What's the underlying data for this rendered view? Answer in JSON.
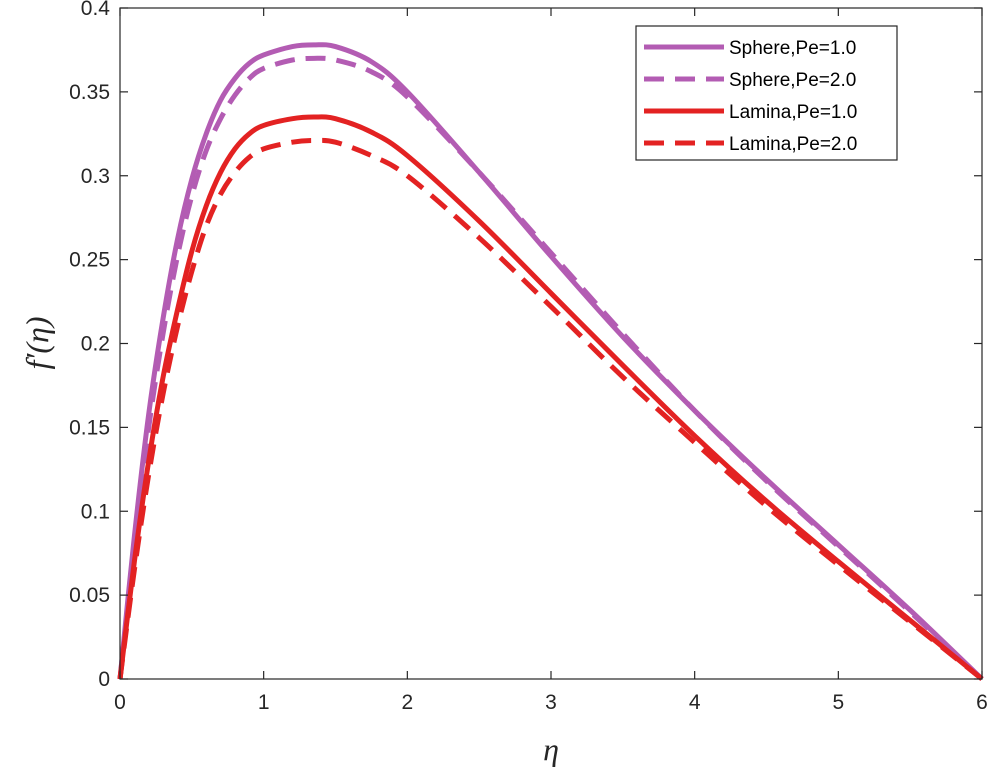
{
  "chart_data": {
    "type": "line",
    "title": "",
    "xlabel": "η",
    "ylabel": "f′(η)",
    "xlim": [
      0,
      6
    ],
    "ylim": [
      0,
      0.4
    ],
    "xticks": [
      0,
      1,
      2,
      3,
      4,
      5,
      6
    ],
    "yticks": [
      0,
      0.05,
      0.1,
      0.15,
      0.2,
      0.25,
      0.3,
      0.35,
      0.4
    ],
    "xtick_labels": [
      "0",
      "1",
      "2",
      "3",
      "4",
      "5",
      "6"
    ],
    "ytick_labels": [
      "0",
      "0.05",
      "0.1",
      "0.15",
      "0.2",
      "0.25",
      "0.3",
      "0.35",
      "0.4"
    ],
    "grid": false,
    "legend_position": "top-right",
    "x": [
      0,
      0.1,
      0.2,
      0.3,
      0.4,
      0.5,
      0.6,
      0.7,
      0.8,
      0.9,
      1.0,
      1.2,
      1.35,
      1.5,
      1.75,
      2.0,
      2.5,
      3.0,
      3.5,
      4.0,
      4.5,
      5.0,
      5.5,
      6.0
    ],
    "series": [
      {
        "name": "Sphere,Pe=1.0",
        "color": "#b35cb3",
        "dash": "solid",
        "values": [
          0,
          0.085,
          0.158,
          0.215,
          0.262,
          0.298,
          0.325,
          0.345,
          0.358,
          0.367,
          0.372,
          0.377,
          0.378,
          0.377,
          0.368,
          0.35,
          0.302,
          0.252,
          0.204,
          0.16,
          0.119,
          0.08,
          0.041,
          0
        ]
      },
      {
        "name": "Sphere,Pe=2.0",
        "color": "#b35cb3",
        "dash": "dashed",
        "values": [
          0,
          0.08,
          0.15,
          0.206,
          0.252,
          0.288,
          0.315,
          0.334,
          0.348,
          0.358,
          0.364,
          0.369,
          0.37,
          0.369,
          0.362,
          0.347,
          0.302,
          0.254,
          0.206,
          0.16,
          0.118,
          0.079,
          0.04,
          0
        ]
      },
      {
        "name": "Lamina,Pe=1.0",
        "color": "#e32222",
        "dash": "solid",
        "values": [
          0,
          0.07,
          0.13,
          0.18,
          0.22,
          0.255,
          0.282,
          0.302,
          0.316,
          0.325,
          0.33,
          0.334,
          0.335,
          0.334,
          0.326,
          0.312,
          0.273,
          0.23,
          0.187,
          0.145,
          0.106,
          0.07,
          0.035,
          0
        ]
      },
      {
        "name": "Lamina,Pe=2.0",
        "color": "#e32222",
        "dash": "dashed",
        "values": [
          0,
          0.065,
          0.122,
          0.17,
          0.21,
          0.243,
          0.27,
          0.289,
          0.302,
          0.311,
          0.316,
          0.32,
          0.321,
          0.32,
          0.312,
          0.3,
          0.263,
          0.222,
          0.18,
          0.141,
          0.103,
          0.068,
          0.034,
          0
        ]
      }
    ]
  }
}
